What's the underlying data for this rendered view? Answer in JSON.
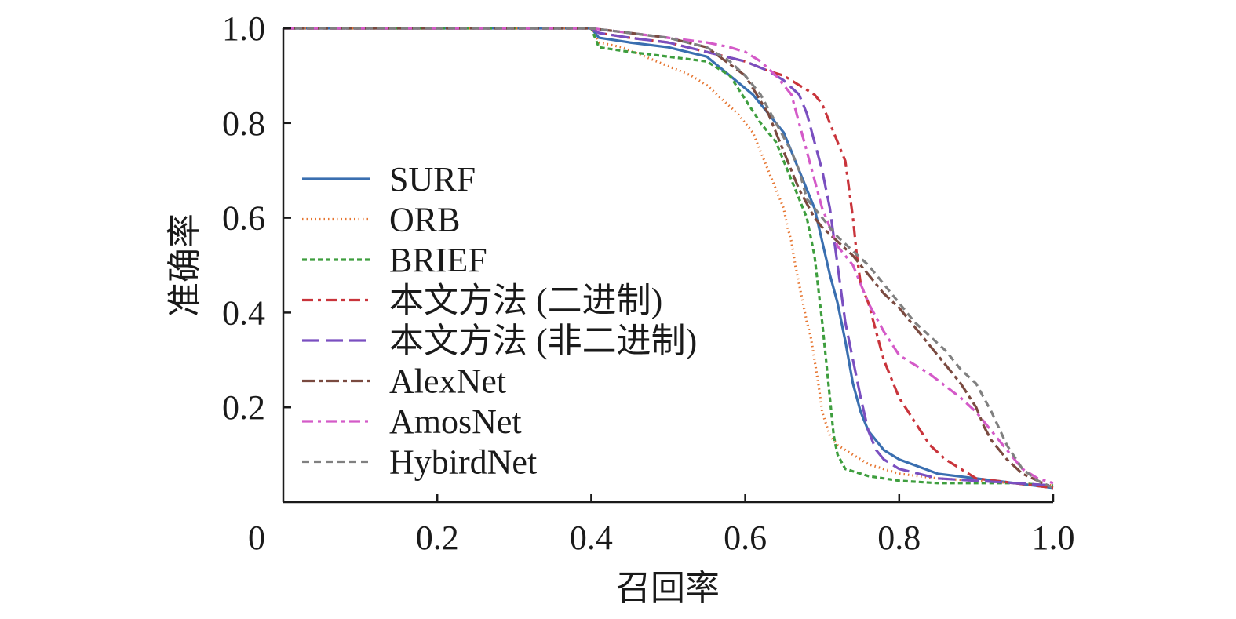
{
  "chart_data": {
    "type": "line",
    "title": "",
    "xlabel": "召回率",
    "ylabel": "准确率",
    "xlim": [
      0,
      1
    ],
    "ylim": [
      0,
      1
    ],
    "grid": false,
    "legend_position": "left",
    "x_ticks": [
      {
        "value": 0,
        "label": "0"
      },
      {
        "value": 0.2,
        "label": "0.2"
      },
      {
        "value": 0.4,
        "label": "0.4"
      },
      {
        "value": 0.6,
        "label": "0.6"
      },
      {
        "value": 0.8,
        "label": "0.8"
      },
      {
        "value": 1.0,
        "label": "1.0"
      }
    ],
    "y_ticks": [
      {
        "value": 0.2,
        "label": "0.2"
      },
      {
        "value": 0.4,
        "label": "0.4"
      },
      {
        "value": 0.6,
        "label": "0.6"
      },
      {
        "value": 0.8,
        "label": "0.8"
      },
      {
        "value": 1.0,
        "label": "1.0"
      }
    ],
    "series": [
      {
        "name": "SURF",
        "color": "#3a6fb0",
        "dash": "solid",
        "x": [
          0,
          0.4,
          0.41,
          0.45,
          0.5,
          0.55,
          0.58,
          0.61,
          0.63,
          0.65,
          0.66,
          0.67,
          0.68,
          0.69,
          0.7,
          0.71,
          0.72,
          0.73,
          0.74,
          0.75,
          0.76,
          0.78,
          0.8,
          0.85,
          0.9,
          0.95,
          1.0
        ],
        "y": [
          1.0,
          1.0,
          0.98,
          0.97,
          0.96,
          0.94,
          0.9,
          0.86,
          0.82,
          0.78,
          0.74,
          0.7,
          0.66,
          0.62,
          0.55,
          0.48,
          0.42,
          0.34,
          0.25,
          0.19,
          0.15,
          0.11,
          0.09,
          0.06,
          0.05,
          0.04,
          0.03
        ]
      },
      {
        "name": "ORB",
        "color": "#e67530",
        "dash": "dotted",
        "x": [
          0,
          0.4,
          0.41,
          0.44,
          0.47,
          0.5,
          0.53,
          0.55,
          0.57,
          0.59,
          0.61,
          0.62,
          0.63,
          0.64,
          0.65,
          0.655,
          0.66,
          0.665,
          0.67,
          0.675,
          0.68,
          0.685,
          0.69,
          0.695,
          0.7,
          0.71,
          0.72,
          0.74,
          0.76,
          0.8,
          0.85,
          0.9,
          0.95,
          1.0
        ],
        "y": [
          1.0,
          1.0,
          0.97,
          0.96,
          0.94,
          0.92,
          0.9,
          0.88,
          0.85,
          0.82,
          0.78,
          0.74,
          0.7,
          0.66,
          0.62,
          0.58,
          0.55,
          0.5,
          0.46,
          0.42,
          0.38,
          0.35,
          0.3,
          0.25,
          0.19,
          0.14,
          0.12,
          0.1,
          0.08,
          0.06,
          0.05,
          0.045,
          0.04,
          0.035
        ]
      },
      {
        "name": "BRIEF",
        "color": "#3e9e3e",
        "dash": "dense",
        "x": [
          0,
          0.4,
          0.41,
          0.45,
          0.5,
          0.55,
          0.58,
          0.6,
          0.62,
          0.64,
          0.65,
          0.66,
          0.67,
          0.68,
          0.69,
          0.695,
          0.7,
          0.705,
          0.71,
          0.715,
          0.72,
          0.73,
          0.76,
          0.8,
          0.85,
          0.9,
          0.95,
          1.0
        ],
        "y": [
          1.0,
          1.0,
          0.96,
          0.95,
          0.94,
          0.93,
          0.9,
          0.85,
          0.8,
          0.76,
          0.72,
          0.68,
          0.64,
          0.6,
          0.52,
          0.45,
          0.38,
          0.3,
          0.22,
          0.14,
          0.1,
          0.07,
          0.055,
          0.045,
          0.04,
          0.04,
          0.04,
          0.035
        ]
      },
      {
        "name": "本文方法 (二进制)",
        "color": "#c9343b",
        "dash": "dashdot",
        "x": [
          0,
          0.4,
          0.41,
          0.45,
          0.5,
          0.55,
          0.6,
          0.63,
          0.65,
          0.67,
          0.69,
          0.7,
          0.71,
          0.72,
          0.73,
          0.735,
          0.74,
          0.745,
          0.75,
          0.76,
          0.77,
          0.78,
          0.79,
          0.8,
          0.82,
          0.84,
          0.86,
          0.88,
          0.9,
          0.95,
          1.0
        ],
        "y": [
          1.0,
          1.0,
          0.99,
          0.98,
          0.97,
          0.95,
          0.93,
          0.91,
          0.9,
          0.88,
          0.86,
          0.84,
          0.8,
          0.76,
          0.72,
          0.66,
          0.6,
          0.52,
          0.46,
          0.42,
          0.36,
          0.3,
          0.26,
          0.22,
          0.17,
          0.12,
          0.09,
          0.07,
          0.05,
          0.04,
          0.03
        ]
      },
      {
        "name": "本文方法 (非二进制)",
        "color": "#7a4fc0",
        "dash": "longdash",
        "x": [
          0,
          0.4,
          0.41,
          0.45,
          0.5,
          0.55,
          0.6,
          0.63,
          0.65,
          0.67,
          0.68,
          0.69,
          0.7,
          0.71,
          0.715,
          0.72,
          0.725,
          0.73,
          0.74,
          0.75,
          0.76,
          0.77,
          0.78,
          0.8,
          0.85,
          0.9,
          0.95,
          1.0
        ],
        "y": [
          1.0,
          1.0,
          0.99,
          0.98,
          0.97,
          0.95,
          0.93,
          0.91,
          0.89,
          0.86,
          0.82,
          0.76,
          0.7,
          0.62,
          0.56,
          0.5,
          0.44,
          0.38,
          0.3,
          0.22,
          0.15,
          0.11,
          0.09,
          0.07,
          0.05,
          0.045,
          0.04,
          0.035
        ]
      },
      {
        "name": "AlexNet",
        "color": "#7a4a40",
        "dash": "dashdotlong",
        "x": [
          0,
          0.4,
          0.45,
          0.5,
          0.55,
          0.6,
          0.63,
          0.65,
          0.67,
          0.69,
          0.7,
          0.72,
          0.74,
          0.76,
          0.78,
          0.8,
          0.82,
          0.84,
          0.86,
          0.88,
          0.9,
          0.91,
          0.92,
          0.94,
          0.96,
          0.98,
          1.0
        ],
        "y": [
          1.0,
          1.0,
          0.99,
          0.98,
          0.96,
          0.9,
          0.82,
          0.74,
          0.66,
          0.6,
          0.58,
          0.55,
          0.52,
          0.48,
          0.44,
          0.41,
          0.37,
          0.33,
          0.29,
          0.25,
          0.2,
          0.16,
          0.13,
          0.09,
          0.06,
          0.045,
          0.03
        ]
      },
      {
        "name": "AmosNet",
        "color": "#d45ac8",
        "dash": "dashdot",
        "x": [
          0,
          0.4,
          0.45,
          0.5,
          0.55,
          0.58,
          0.6,
          0.62,
          0.64,
          0.66,
          0.67,
          0.68,
          0.69,
          0.7,
          0.71,
          0.72,
          0.73,
          0.74,
          0.75,
          0.76,
          0.78,
          0.8,
          0.84,
          0.88,
          0.9,
          0.92,
          0.94,
          0.96,
          0.98,
          1.0
        ],
        "y": [
          1.0,
          1.0,
          0.99,
          0.98,
          0.97,
          0.96,
          0.95,
          0.93,
          0.9,
          0.86,
          0.8,
          0.74,
          0.68,
          0.62,
          0.58,
          0.54,
          0.52,
          0.5,
          0.46,
          0.42,
          0.36,
          0.31,
          0.27,
          0.22,
          0.19,
          0.15,
          0.11,
          0.07,
          0.05,
          0.04
        ]
      },
      {
        "name": "HybirdNet",
        "color": "#808080",
        "dash": "dashed",
        "x": [
          0,
          0.4,
          0.45,
          0.5,
          0.55,
          0.58,
          0.6,
          0.62,
          0.64,
          0.66,
          0.67,
          0.68,
          0.7,
          0.72,
          0.74,
          0.76,
          0.78,
          0.8,
          0.82,
          0.84,
          0.86,
          0.88,
          0.9,
          0.92,
          0.94,
          0.96,
          0.98,
          1.0
        ],
        "y": [
          1.0,
          1.0,
          0.99,
          0.98,
          0.96,
          0.93,
          0.9,
          0.86,
          0.8,
          0.74,
          0.7,
          0.64,
          0.6,
          0.56,
          0.53,
          0.5,
          0.46,
          0.42,
          0.38,
          0.35,
          0.32,
          0.28,
          0.25,
          0.19,
          0.12,
          0.07,
          0.045,
          0.03
        ]
      }
    ]
  }
}
